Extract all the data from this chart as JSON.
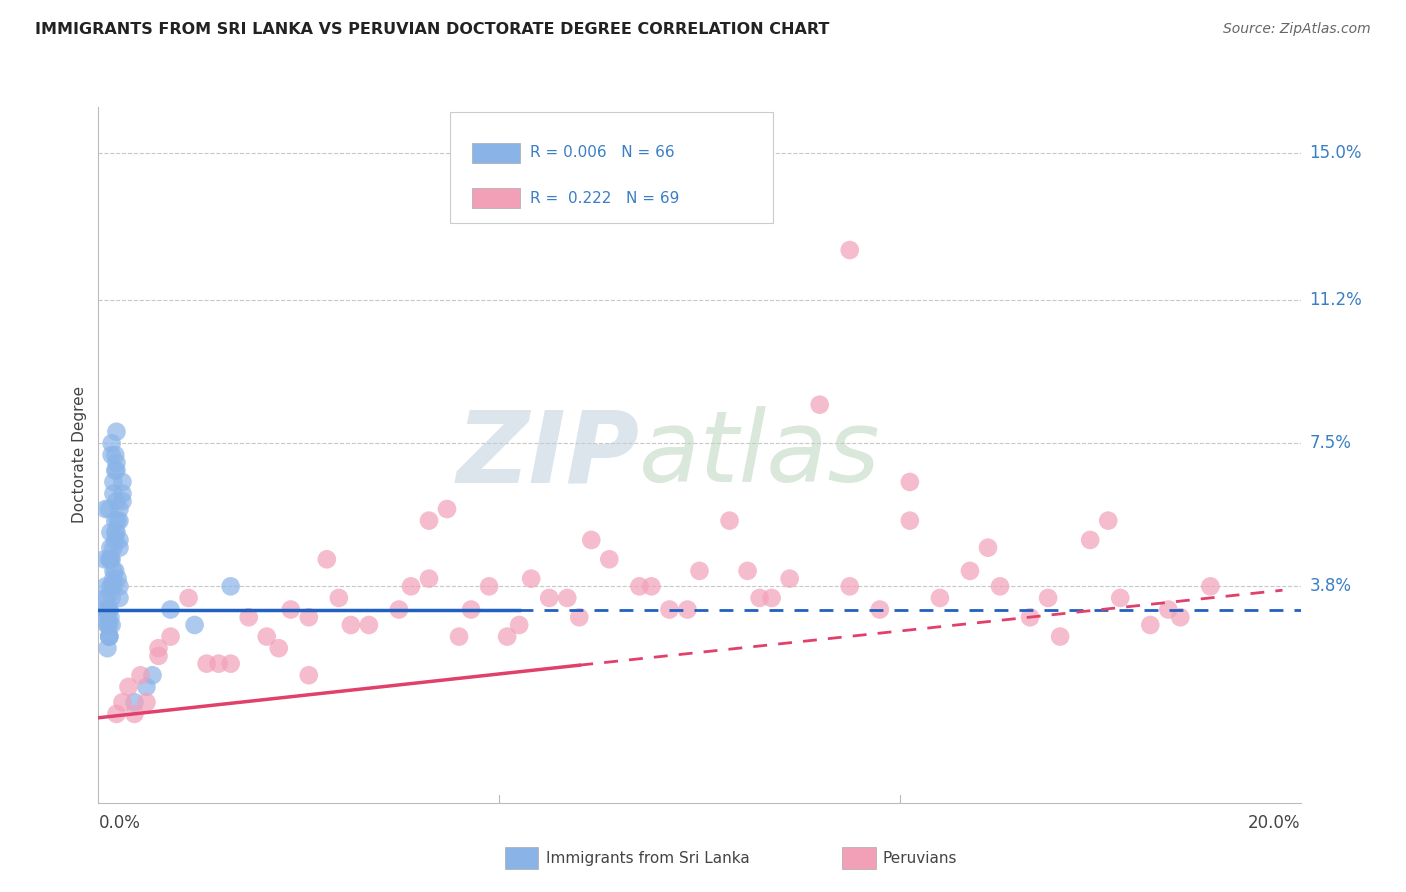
{
  "title": "IMMIGRANTS FROM SRI LANKA VS PERUVIAN DOCTORATE DEGREE CORRELATION CHART",
  "source": "Source: ZipAtlas.com",
  "ylabel": "Doctorate Degree",
  "ytick_labels": [
    "3.8%",
    "7.5%",
    "11.2%",
    "15.0%"
  ],
  "ytick_values": [
    3.8,
    7.5,
    11.2,
    15.0
  ],
  "xtick_labels": [
    "0.0%",
    "20.0%"
  ],
  "xlim": [
    0.0,
    20.0
  ],
  "ylim": [
    -1.8,
    16.2
  ],
  "legend_r1": "R = 0.006",
  "legend_n1": "N = 66",
  "legend_r2": "R =  0.222",
  "legend_n2": "N = 69",
  "blue_color": "#8ab4e8",
  "pink_color": "#f2a0b8",
  "blue_line_color": "#2060c0",
  "pink_line_color": "#e0406a",
  "background_color": "#ffffff",
  "grid_color": "#c8c8c8",
  "blue_line_y": 3.2,
  "blue_line_solid_end_x": 7.0,
  "pink_line_start_y": 0.4,
  "pink_line_end_y": 3.8,
  "pink_line_solid_end_x": 8.0,
  "sri_lanka_x": [
    0.15,
    0.18,
    0.12,
    0.25,
    0.22,
    0.3,
    0.1,
    0.2,
    0.35,
    0.28,
    0.18,
    0.15,
    0.4,
    0.22,
    0.32,
    0.25,
    0.18,
    0.28,
    0.15,
    0.35,
    0.2,
    0.12,
    0.3,
    0.25,
    0.22,
    0.18,
    0.32,
    0.28,
    0.15,
    0.2,
    0.35,
    0.22,
    0.18,
    0.3,
    0.25,
    0.4,
    0.12,
    0.28,
    0.2,
    0.15,
    0.35,
    0.22,
    0.18,
    0.3,
    0.25,
    0.15,
    0.2,
    0.28,
    0.35,
    0.12,
    0.22,
    0.18,
    0.3,
    0.25,
    0.15,
    0.4,
    0.2,
    0.28,
    0.18,
    0.35,
    2.2,
    1.2,
    0.9,
    1.6,
    0.6,
    0.8
  ],
  "sri_lanka_y": [
    3.0,
    2.8,
    5.8,
    6.5,
    7.2,
    7.8,
    4.5,
    5.2,
    3.8,
    4.2,
    2.5,
    3.5,
    6.0,
    7.5,
    5.5,
    4.8,
    3.2,
    6.8,
    2.8,
    5.0,
    4.5,
    3.8,
    7.0,
    6.2,
    3.5,
    5.8,
    4.0,
    7.2,
    3.2,
    4.8,
    5.5,
    3.8,
    2.5,
    6.0,
    4.2,
    6.5,
    3.5,
    5.2,
    3.0,
    2.8,
    5.8,
    4.5,
    3.2,
    6.8,
    4.0,
    2.2,
    3.8,
    5.5,
    4.8,
    3.2,
    2.8,
    4.5,
    5.2,
    3.8,
    3.0,
    6.2,
    4.5,
    5.0,
    2.5,
    3.5,
    3.8,
    3.2,
    1.5,
    2.8,
    0.8,
    1.2
  ],
  "peru_x": [
    0.3,
    0.5,
    0.8,
    1.2,
    1.8,
    2.5,
    3.0,
    3.5,
    4.0,
    4.5,
    5.0,
    5.5,
    6.0,
    6.5,
    7.0,
    7.5,
    8.0,
    8.5,
    9.0,
    9.5,
    10.0,
    10.5,
    11.0,
    11.5,
    12.0,
    12.5,
    13.0,
    13.5,
    14.0,
    14.5,
    15.0,
    15.5,
    16.0,
    16.5,
    17.0,
    17.5,
    18.0,
    18.5,
    0.4,
    0.7,
    1.0,
    1.5,
    2.0,
    2.8,
    3.2,
    3.8,
    4.2,
    5.2,
    5.8,
    6.2,
    6.8,
    7.2,
    7.8,
    8.2,
    9.2,
    9.8,
    10.8,
    11.2,
    12.5,
    13.5,
    14.8,
    15.8,
    16.8,
    17.8,
    0.6,
    1.0,
    2.2,
    3.5,
    5.5
  ],
  "peru_y": [
    0.5,
    1.2,
    0.8,
    2.5,
    1.8,
    3.0,
    2.2,
    1.5,
    3.5,
    2.8,
    3.2,
    4.0,
    2.5,
    3.8,
    2.8,
    3.5,
    3.0,
    4.5,
    3.8,
    3.2,
    4.2,
    5.5,
    3.5,
    4.0,
    8.5,
    3.8,
    3.2,
    5.5,
    3.5,
    4.2,
    3.8,
    3.0,
    2.5,
    5.0,
    3.5,
    2.8,
    3.0,
    3.8,
    0.8,
    1.5,
    2.0,
    3.5,
    1.8,
    2.5,
    3.2,
    4.5,
    2.8,
    3.8,
    5.8,
    3.2,
    2.5,
    4.0,
    3.5,
    5.0,
    3.8,
    3.2,
    4.2,
    3.5,
    12.5,
    6.5,
    4.8,
    3.5,
    5.5,
    3.2,
    0.5,
    2.2,
    1.8,
    3.0,
    5.5
  ]
}
